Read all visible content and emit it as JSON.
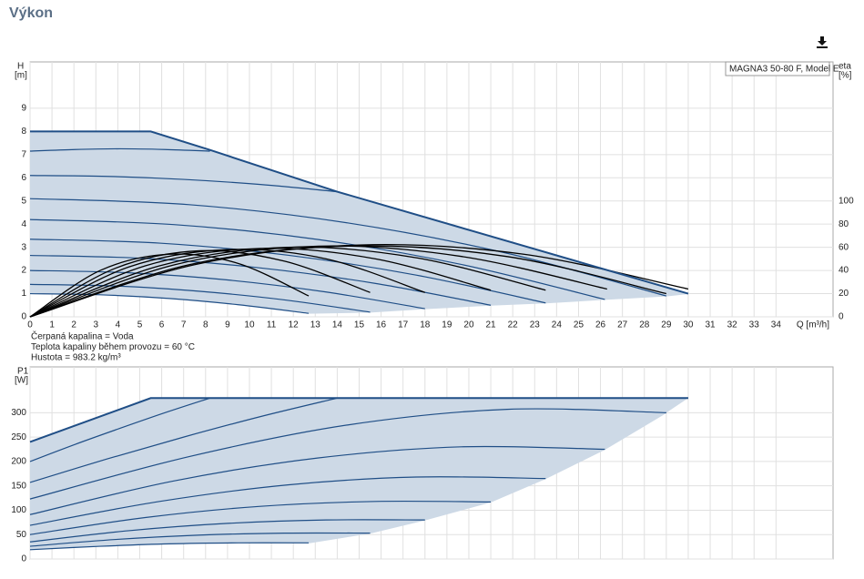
{
  "header": {
    "title": "Výkon"
  },
  "chart_data": [
    {
      "type": "line",
      "model": "MAGNA3 50-80 F, Model E",
      "ylabel": "H",
      "yunit": "[m]",
      "y2label": "eta",
      "y2unit": "[%]",
      "xlabel": "Q [m³/h]",
      "notes": [
        "Čerpaná kapalina = Voda",
        "Teplota kapaliny během provozu = 60 °C",
        "Hustota = 983.2 kg/m³"
      ],
      "xlim": [
        0,
        36.6
      ],
      "ylim": [
        0,
        11
      ],
      "y2lim": [
        0,
        220
      ],
      "xticks": [
        0,
        1,
        2,
        3,
        4,
        5,
        6,
        7,
        8,
        9,
        10,
        11,
        12,
        13,
        14,
        15,
        16,
        17,
        18,
        19,
        20,
        21,
        22,
        23,
        24,
        25,
        26,
        27,
        28,
        29,
        30,
        31,
        32,
        33,
        34
      ],
      "yticks": [
        0,
        1,
        2,
        3,
        4,
        5,
        6,
        7,
        8,
        9
      ],
      "y2ticks": [
        0,
        20,
        40,
        60,
        80,
        100
      ],
      "x_tick_labels": true,
      "grid": true,
      "area_color": "#cdd9e6",
      "envelope": {
        "color": "#1f4e86",
        "x": [
          0,
          5.5,
          8.2,
          14,
          30
        ],
        "values": [
          8,
          8,
          7.2,
          5.4,
          1
        ]
      },
      "lower_edge": {
        "x": [
          30,
          29,
          26.2,
          23.5,
          21,
          18,
          15.5,
          12.7
        ],
        "values": [
          1,
          0.9,
          0.75,
          0.6,
          0.5,
          0.35,
          0.2,
          0.15
        ]
      },
      "series": [
        {
          "color": "#1f4e86",
          "x": [
            0,
            3.2,
            6.35,
            9.5,
            12.7
          ],
          "values": [
            1.0,
            0.95,
            0.79,
            0.52,
            0.15
          ]
        },
        {
          "color": "#1f4e86",
          "x": [
            0,
            3.9,
            7.75,
            11.6,
            15.5
          ],
          "values": [
            1.4,
            1.33,
            1.1,
            0.73,
            0.2
          ]
        },
        {
          "color": "#1f4e86",
          "x": [
            0,
            4.5,
            9,
            13.5,
            18
          ],
          "values": [
            2.0,
            1.9,
            1.59,
            1.07,
            0.35
          ]
        },
        {
          "color": "#1f4e86",
          "x": [
            0,
            5.25,
            10.5,
            15.75,
            21
          ],
          "values": [
            2.65,
            2.52,
            2.11,
            1.44,
            0.5
          ]
        },
        {
          "color": "#1f4e86",
          "x": [
            0,
            5.9,
            11.75,
            17.6,
            23.5
          ],
          "values": [
            3.35,
            3.18,
            2.66,
            1.8,
            0.6
          ]
        },
        {
          "color": "#1f4e86",
          "x": [
            0,
            6.55,
            13.1,
            19.65,
            26.2
          ],
          "values": [
            4.2,
            3.98,
            3.34,
            2.26,
            0.75
          ]
        },
        {
          "color": "#1f4e86",
          "x": [
            0,
            7.25,
            14.5,
            21.75,
            29
          ],
          "values": [
            5.1,
            4.84,
            4.05,
            2.74,
            0.9
          ]
        },
        {
          "color": "#1f4e86",
          "x": [
            0,
            3.5,
            7,
            10.5,
            14
          ],
          "values": [
            6.1,
            6.06,
            5.93,
            5.71,
            5.4
          ]
        },
        {
          "color": "#1f4e86",
          "x": [
            0,
            2.05,
            4.1,
            6.15,
            8.2
          ],
          "values": [
            7.15,
            7.22,
            7.25,
            7.22,
            7.15
          ]
        },
        {
          "color": "#000000",
          "axis": "y2",
          "x": [
            0,
            3.2,
            6.35,
            9.5,
            12.7
          ],
          "values": [
            0,
            40,
            54,
            46,
            18
          ]
        },
        {
          "color": "#000000",
          "axis": "y2",
          "x": [
            0,
            3.9,
            7.75,
            11.6,
            15.5
          ],
          "values": [
            0,
            42,
            57,
            48,
            21
          ]
        },
        {
          "color": "#000000",
          "axis": "y2",
          "x": [
            0,
            4.5,
            9,
            13.5,
            18
          ],
          "values": [
            0,
            43,
            58,
            50,
            21
          ]
        },
        {
          "color": "#000000",
          "axis": "y2",
          "x": [
            0,
            5.25,
            10.5,
            15.75,
            21
          ],
          "values": [
            0,
            44,
            59,
            50,
            23
          ]
        },
        {
          "color": "#000000",
          "axis": "y2",
          "x": [
            0,
            5.9,
            11.75,
            17.6,
            23.5
          ],
          "values": [
            0,
            44,
            60,
            51,
            23
          ]
        },
        {
          "color": "#000000",
          "axis": "y2",
          "x": [
            0,
            6.6,
            13.15,
            19.7,
            26.3
          ],
          "values": [
            0,
            45,
            61,
            52,
            24
          ]
        },
        {
          "color": "#000000",
          "axis": "y2",
          "x": [
            0,
            7.25,
            14.5,
            21.75,
            29
          ],
          "values": [
            0,
            45,
            61,
            52,
            20
          ]
        },
        {
          "color": "#000000",
          "axis": "y2",
          "x": [
            0,
            7.5,
            15,
            22.5,
            30
          ],
          "values": [
            0,
            45,
            62,
            54,
            24
          ]
        }
      ]
    },
    {
      "type": "line",
      "ylabel": "P1",
      "yunit": "[W]",
      "xlim": [
        0,
        36.6
      ],
      "ylim": [
        0,
        394
      ],
      "xticks": [
        0,
        1,
        2,
        3,
        4,
        5,
        6,
        7,
        8,
        9,
        10,
        11,
        12,
        13,
        14,
        15,
        16,
        17,
        18,
        19,
        20,
        21,
        22,
        23,
        24,
        25,
        26,
        27,
        28,
        29,
        30,
        31,
        32,
        33,
        34
      ],
      "yticks": [
        0,
        50,
        100,
        150,
        200,
        250,
        300
      ],
      "x_tick_labels": false,
      "grid": true,
      "area_color": "#cdd9e6",
      "envelope": {
        "color": "#1f4e86",
        "x": [
          0,
          5.5,
          30
        ],
        "values": [
          240,
          330,
          330
        ]
      },
      "lower_edge": {
        "x": [
          29,
          26.2,
          23.5,
          21,
          18,
          15.5,
          12.7
        ],
        "values": [
          300,
          225,
          165,
          117,
          80,
          53,
          33
        ]
      },
      "series": [
        {
          "color": "#1f4e86",
          "x": [
            0,
            3.2,
            6.35,
            9.5,
            12.7
          ],
          "values": [
            19,
            26,
            31,
            33,
            33
          ]
        },
        {
          "color": "#1f4e86",
          "x": [
            0,
            3.9,
            7.75,
            11.6,
            15.5
          ],
          "values": [
            26,
            40,
            49,
            53,
            53
          ]
        },
        {
          "color": "#1f4e86",
          "x": [
            0,
            4.5,
            9,
            13.5,
            18
          ],
          "values": [
            35,
            58,
            73,
            80,
            80
          ]
        },
        {
          "color": "#1f4e86",
          "x": [
            0,
            5.25,
            10.5,
            15.75,
            21
          ],
          "values": [
            50,
            85,
            108,
            118,
            117
          ]
        },
        {
          "color": "#1f4e86",
          "x": [
            0,
            5.9,
            11.75,
            17.6,
            23.5
          ],
          "values": [
            69,
            118,
            152,
            168,
            165
          ]
        },
        {
          "color": "#1f4e86",
          "x": [
            0,
            6.55,
            13.1,
            19.65,
            26.2
          ],
          "values": [
            91,
            160,
            207,
            230,
            225
          ]
        },
        {
          "color": "#1f4e86",
          "x": [
            0,
            7.25,
            14.5,
            21.75,
            29
          ],
          "values": [
            123,
            210,
            275,
            307,
            300
          ]
        },
        {
          "color": "#1f4e86",
          "x": [
            0,
            3.5,
            7,
            10.5,
            14
          ],
          "values": [
            157,
            205,
            250,
            292,
            330
          ]
        },
        {
          "color": "#1f4e86",
          "x": [
            0,
            2.05,
            4.1,
            6.15,
            8.2
          ],
          "values": [
            200,
            235,
            268,
            300,
            330
          ]
        }
      ]
    }
  ]
}
